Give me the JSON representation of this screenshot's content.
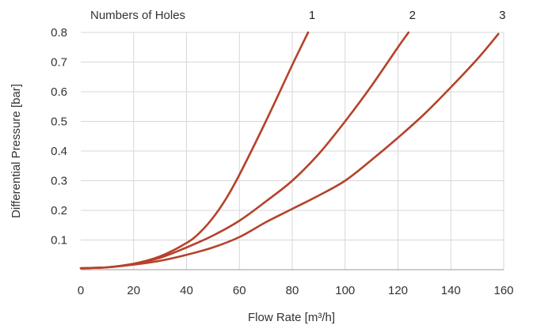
{
  "chart_data": {
    "type": "line",
    "title": "",
    "legend_title": "Numbers of Holes",
    "xlabel": "Flow Rate [m³/h]",
    "ylabel": "Differential Pressure [bar]",
    "xlim": [
      0,
      160
    ],
    "ylim": [
      0,
      0.8
    ],
    "x_ticks": [
      0,
      20,
      40,
      60,
      80,
      100,
      120,
      140,
      160
    ],
    "y_ticks": [
      0.1,
      0.2,
      0.3,
      0.4,
      0.5,
      0.6,
      0.7,
      0.8
    ],
    "grid": true,
    "line_color": "#b5422b",
    "series": [
      {
        "name": "1",
        "x": [
          0,
          10,
          20,
          30,
          40,
          45,
          50,
          55,
          60,
          70,
          80,
          86
        ],
        "values": [
          0.005,
          0.008,
          0.02,
          0.045,
          0.09,
          0.125,
          0.175,
          0.24,
          0.32,
          0.5,
          0.69,
          0.8
        ]
      },
      {
        "name": "2",
        "x": [
          0,
          10,
          20,
          30,
          40,
          50,
          60,
          70,
          80,
          90,
          100,
          110,
          120,
          124
        ],
        "values": [
          0.005,
          0.008,
          0.02,
          0.04,
          0.075,
          0.115,
          0.165,
          0.23,
          0.3,
          0.39,
          0.5,
          0.62,
          0.75,
          0.8
        ]
      },
      {
        "name": "3",
        "x": [
          0,
          10,
          20,
          30,
          40,
          50,
          60,
          70,
          80,
          90,
          100,
          110,
          120,
          130,
          140,
          150,
          158
        ],
        "values": [
          0.005,
          0.008,
          0.017,
          0.03,
          0.05,
          0.075,
          0.11,
          0.16,
          0.205,
          0.25,
          0.3,
          0.37,
          0.445,
          0.525,
          0.615,
          0.71,
          0.795
        ]
      }
    ]
  }
}
